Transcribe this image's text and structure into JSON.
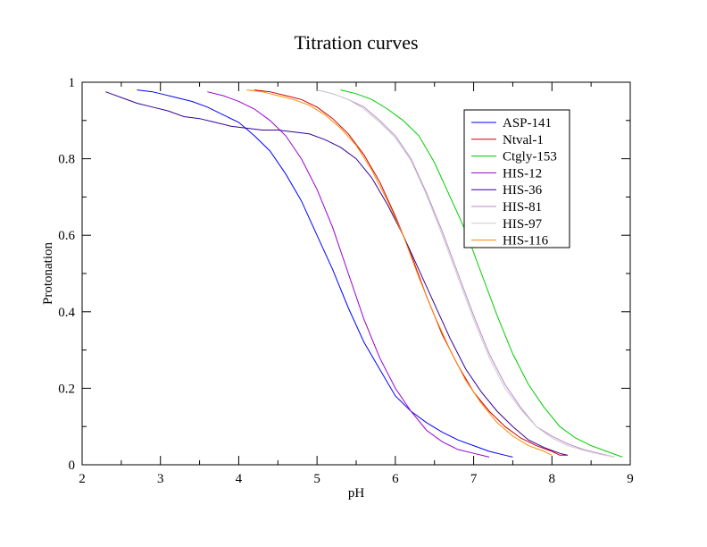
{
  "chart_data": {
    "type": "line",
    "title": "Titration curves",
    "xlabel": "pH",
    "ylabel": "Protonation",
    "xlim": [
      2,
      9
    ],
    "ylim": [
      0,
      1
    ],
    "xticks": [
      2,
      3,
      4,
      5,
      6,
      7,
      8,
      9
    ],
    "yticks": [
      0,
      0.2,
      0.4,
      0.6,
      0.8,
      1
    ],
    "ytick_labels": [
      "0",
      "0.2",
      "0.4",
      "0.6",
      "0.8",
      "1"
    ],
    "grid": false,
    "legend_position": "top-right",
    "series": [
      {
        "name": "ASP-141",
        "color": "#0000ff",
        "x": [
          2.7,
          2.9,
          3.0,
          3.2,
          3.4,
          3.6,
          3.8,
          4.0,
          4.2,
          4.4,
          4.6,
          4.8,
          5.0,
          5.2,
          5.4,
          5.6,
          5.8,
          6.0,
          6.2,
          6.4,
          6.6,
          6.8,
          7.0,
          7.2,
          7.4,
          7.5
        ],
        "y": [
          0.98,
          0.975,
          0.97,
          0.96,
          0.95,
          0.935,
          0.915,
          0.895,
          0.86,
          0.82,
          0.76,
          0.69,
          0.6,
          0.51,
          0.41,
          0.32,
          0.25,
          0.18,
          0.14,
          0.11,
          0.085,
          0.065,
          0.05,
          0.035,
          0.025,
          0.02
        ]
      },
      {
        "name": "Ntval-1",
        "color": "#cc0000",
        "x": [
          4.2,
          4.4,
          4.6,
          4.8,
          5.0,
          5.2,
          5.4,
          5.6,
          5.8,
          6.0,
          6.2,
          6.4,
          6.6,
          6.8,
          7.0,
          7.2,
          7.4,
          7.6,
          7.8,
          8.0,
          8.1,
          8.2
        ],
        "y": [
          0.98,
          0.975,
          0.965,
          0.955,
          0.935,
          0.905,
          0.865,
          0.81,
          0.74,
          0.65,
          0.55,
          0.44,
          0.34,
          0.26,
          0.19,
          0.14,
          0.1,
          0.07,
          0.05,
          0.035,
          0.025,
          0.025
        ]
      },
      {
        "name": "Ctgly-153",
        "color": "#00cc00",
        "x": [
          5.3,
          5.5,
          5.7,
          5.9,
          6.1,
          6.3,
          6.5,
          6.7,
          6.9,
          7.1,
          7.3,
          7.5,
          7.7,
          7.9,
          8.1,
          8.3,
          8.5,
          8.7,
          8.9
        ],
        "y": [
          0.98,
          0.97,
          0.955,
          0.93,
          0.9,
          0.86,
          0.79,
          0.7,
          0.61,
          0.5,
          0.39,
          0.29,
          0.21,
          0.15,
          0.1,
          0.07,
          0.05,
          0.035,
          0.02
        ]
      },
      {
        "name": "HIS-12",
        "color": "#9900cc",
        "x": [
          3.6,
          3.8,
          4.0,
          4.2,
          4.4,
          4.6,
          4.8,
          5.0,
          5.2,
          5.4,
          5.6,
          5.8,
          6.0,
          6.2,
          6.4,
          6.6,
          6.8,
          7.0,
          7.2
        ],
        "y": [
          0.975,
          0.965,
          0.95,
          0.93,
          0.9,
          0.86,
          0.8,
          0.72,
          0.62,
          0.5,
          0.38,
          0.28,
          0.2,
          0.14,
          0.09,
          0.06,
          0.04,
          0.03,
          0.02
        ]
      },
      {
        "name": "HIS-36",
        "color": "#330099",
        "x": [
          2.3,
          2.5,
          2.7,
          2.9,
          3.1,
          3.3,
          3.5,
          3.7,
          3.9,
          4.1,
          4.3,
          4.5,
          4.7,
          4.9,
          5.1,
          5.3,
          5.5,
          5.7,
          5.9,
          6.1,
          6.3,
          6.5,
          6.7,
          6.9,
          7.1,
          7.3,
          7.5,
          7.7,
          7.9,
          8.1,
          8.2
        ],
        "y": [
          0.975,
          0.96,
          0.945,
          0.935,
          0.925,
          0.91,
          0.905,
          0.895,
          0.885,
          0.88,
          0.875,
          0.875,
          0.87,
          0.865,
          0.85,
          0.83,
          0.8,
          0.75,
          0.68,
          0.6,
          0.51,
          0.42,
          0.33,
          0.25,
          0.19,
          0.14,
          0.1,
          0.065,
          0.045,
          0.03,
          0.025
        ]
      },
      {
        "name": "HIS-81",
        "color": "#bb88cc",
        "x": [
          5.0,
          5.2,
          5.4,
          5.6,
          5.8,
          6.0,
          6.2,
          6.4,
          6.6,
          6.8,
          7.0,
          7.2,
          7.4,
          7.6,
          7.8,
          8.0,
          8.2,
          8.4,
          8.6,
          8.8
        ],
        "y": [
          0.98,
          0.97,
          0.955,
          0.935,
          0.9,
          0.86,
          0.8,
          0.71,
          0.61,
          0.5,
          0.39,
          0.29,
          0.21,
          0.15,
          0.1,
          0.075,
          0.055,
          0.04,
          0.03,
          0.02
        ]
      },
      {
        "name": "HIS-97",
        "color": "#cccccc",
        "x": [
          5.0,
          5.2,
          5.4,
          5.6,
          5.8,
          6.0,
          6.2,
          6.4,
          6.6,
          6.8,
          7.0,
          7.2,
          7.4,
          7.6,
          7.8,
          8.0,
          8.2,
          8.4,
          8.6,
          8.8
        ],
        "y": [
          0.98,
          0.97,
          0.955,
          0.93,
          0.895,
          0.855,
          0.795,
          0.705,
          0.6,
          0.49,
          0.38,
          0.28,
          0.2,
          0.145,
          0.1,
          0.07,
          0.05,
          0.038,
          0.028,
          0.02
        ]
      },
      {
        "name": "HIS-116",
        "color": "#ff8800",
        "x": [
          4.1,
          4.3,
          4.5,
          4.7,
          4.9,
          5.1,
          5.3,
          5.5,
          5.7,
          5.9,
          6.1,
          6.3,
          6.5,
          6.7,
          6.9,
          7.1,
          7.3,
          7.5,
          7.7,
          7.9,
          8.0
        ],
        "y": [
          0.98,
          0.975,
          0.965,
          0.955,
          0.94,
          0.915,
          0.88,
          0.835,
          0.77,
          0.69,
          0.6,
          0.49,
          0.39,
          0.3,
          0.22,
          0.16,
          0.11,
          0.075,
          0.05,
          0.035,
          0.025
        ]
      }
    ]
  }
}
